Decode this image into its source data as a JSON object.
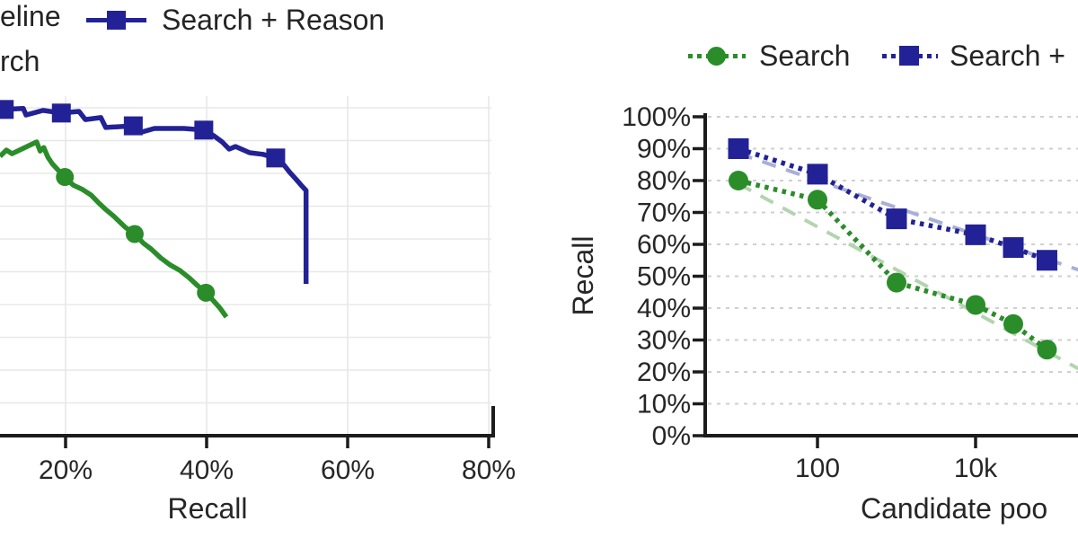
{
  "figure": {
    "background": "#ffffff",
    "colors": {
      "search_green": "#2a8d2a",
      "reason_blue": "#222296",
      "trend_green": "#b4d4b0",
      "trend_blue": "#aaafd7",
      "grid": "#e8e8e8",
      "grid_dotted": "#cfcfcf",
      "axis": "#1c1c1c",
      "text": "#262626"
    }
  },
  "left_legend": {
    "row1_left_text": "eline",
    "row1_item": {
      "label": "Search + Reason",
      "color": "#222296",
      "marker": "square"
    },
    "row2_left_text": "rch"
  },
  "right_legend": {
    "items": [
      {
        "label": "Search",
        "color": "#2a8d2a",
        "marker": "circle"
      },
      {
        "label": "Search +",
        "color": "#222296",
        "marker": "square"
      }
    ]
  },
  "chart_data": [
    {
      "id": "precision-recall-curve",
      "type": "line",
      "xlabel": "Recall",
      "ylabel": "",
      "x_ticks": [
        {
          "value": 20,
          "label": "20%"
        },
        {
          "value": 40,
          "label": "40%"
        },
        {
          "value": 60,
          "label": "60%"
        },
        {
          "value": 80,
          "label": "80%"
        }
      ],
      "y_ticks": [],
      "x_range_visible": [
        10.7,
        80.4
      ],
      "grid": true,
      "series": [
        {
          "label": "Search + Reason",
          "color": "#222296",
          "style": "solid",
          "width": 5.5,
          "marker": "square",
          "marker_size": 21,
          "points": [
            [
              10.7,
              99.6
            ],
            [
              11.3,
              99.5
            ],
            [
              14.0,
              99.8
            ],
            [
              14.4,
              97.8
            ],
            [
              16.8,
              99.2
            ],
            [
              19.4,
              98.4
            ],
            [
              21.9,
              98.9
            ],
            [
              22.8,
              96.4
            ],
            [
              25.0,
              97.0
            ],
            [
              25.7,
              94.0
            ],
            [
              29.6,
              94.5
            ],
            [
              30.8,
              92.6
            ],
            [
              32.6,
              93.7
            ],
            [
              36.8,
              93.7
            ],
            [
              39.6,
              93.2
            ],
            [
              41.0,
              91.5
            ],
            [
              42.2,
              89.6
            ],
            [
              43.2,
              87.4
            ],
            [
              44.1,
              88.2
            ],
            [
              46.1,
              86.3
            ],
            [
              48.0,
              85.8
            ],
            [
              49.8,
              84.7
            ],
            [
              51.0,
              82.5
            ],
            [
              51.8,
              80.3
            ],
            [
              52.6,
              78.4
            ],
            [
              53.4,
              76.4
            ],
            [
              54.1,
              74.8
            ],
            [
              54.1,
              46.3
            ]
          ],
          "marker_points": [
            [
              11.3,
              99.5
            ],
            [
              19.4,
              98.4
            ],
            [
              29.6,
              94.5
            ],
            [
              39.6,
              93.2
            ],
            [
              49.8,
              84.7
            ]
          ]
        },
        {
          "label": "Search",
          "color": "#2a8d2a",
          "style": "solid",
          "width": 5.5,
          "marker": "circle",
          "marker_size": 20,
          "points": [
            [
              10.7,
              85.2
            ],
            [
              11.6,
              87.1
            ],
            [
              12.4,
              86.0
            ],
            [
              15.9,
              89.6
            ],
            [
              16.4,
              86.8
            ],
            [
              16.9,
              87.9
            ],
            [
              17.5,
              84.9
            ],
            [
              18.1,
              83.0
            ],
            [
              18.9,
              81.1
            ],
            [
              19.9,
              78.9
            ],
            [
              21.1,
              76.4
            ],
            [
              22.4,
              75.1
            ],
            [
              23.6,
              73.4
            ],
            [
              24.6,
              71.2
            ],
            [
              25.7,
              69.0
            ],
            [
              26.9,
              66.8
            ],
            [
              28.5,
              63.5
            ],
            [
              29.8,
              61.5
            ],
            [
              31.0,
              58.8
            ],
            [
              32.1,
              57.0
            ],
            [
              33.5,
              54.2
            ],
            [
              34.8,
              52.1
            ],
            [
              36.2,
              50.4
            ],
            [
              37.5,
              48.2
            ],
            [
              38.7,
              45.8
            ],
            [
              39.9,
              43.6
            ],
            [
              41.0,
              41.1
            ],
            [
              41.9,
              38.9
            ],
            [
              42.8,
              36.2
            ]
          ],
          "marker_points": [
            [
              19.9,
              78.9
            ],
            [
              29.8,
              61.5
            ],
            [
              39.9,
              43.6
            ]
          ]
        }
      ]
    },
    {
      "id": "recall-vs-candidate-pool",
      "type": "line",
      "xlabel": "Candidate poo",
      "ylabel": "Recall",
      "x_scale": "log",
      "x_ticks": [
        {
          "value": 100,
          "label": "100"
        },
        {
          "value": 10000,
          "label": "10k"
        }
      ],
      "y_ticks": [
        {
          "value": 0,
          "label": "0%"
        },
        {
          "value": 10,
          "label": "10%"
        },
        {
          "value": 20,
          "label": "20%"
        },
        {
          "value": 30,
          "label": "30%"
        },
        {
          "value": 40,
          "label": "40%"
        },
        {
          "value": 50,
          "label": "50%"
        },
        {
          "value": 60,
          "label": "60%"
        },
        {
          "value": 70,
          "label": "70%"
        },
        {
          "value": 80,
          "label": "80%"
        },
        {
          "value": 90,
          "label": "90%"
        },
        {
          "value": 100,
          "label": "100%"
        }
      ],
      "ylim": [
        0,
        100
      ],
      "grid": "dotted-horizontal",
      "series": [
        {
          "label": "Search + Reason trend",
          "color": "#aaafd7",
          "style": "dashed",
          "width": 4,
          "marker": "none",
          "points": [
            [
              10,
              88.5
            ],
            [
              200000,
              52
            ]
          ]
        },
        {
          "label": "Search trend",
          "color": "#b4d4b0",
          "style": "dashed",
          "width": 4,
          "marker": "none",
          "points": [
            [
              10,
              79
            ],
            [
              200000,
              21
            ]
          ]
        },
        {
          "label": "Search + Reason",
          "color": "#222296",
          "style": "dotted",
          "width": 5.5,
          "marker": "square",
          "marker_size": 23,
          "points": [
            [
              10,
              90
            ],
            [
              100,
              82
            ],
            [
              1000,
              68
            ],
            [
              10000,
              63
            ],
            [
              30000,
              59
            ],
            [
              80000,
              55
            ]
          ]
        },
        {
          "label": "Search",
          "color": "#2a8d2a",
          "style": "dotted",
          "width": 5.5,
          "marker": "circle",
          "marker_size": 22,
          "points": [
            [
              10,
              80
            ],
            [
              100,
              74
            ],
            [
              1000,
              48
            ],
            [
              10000,
              41
            ],
            [
              30000,
              35
            ],
            [
              80000,
              27
            ]
          ]
        }
      ]
    }
  ]
}
